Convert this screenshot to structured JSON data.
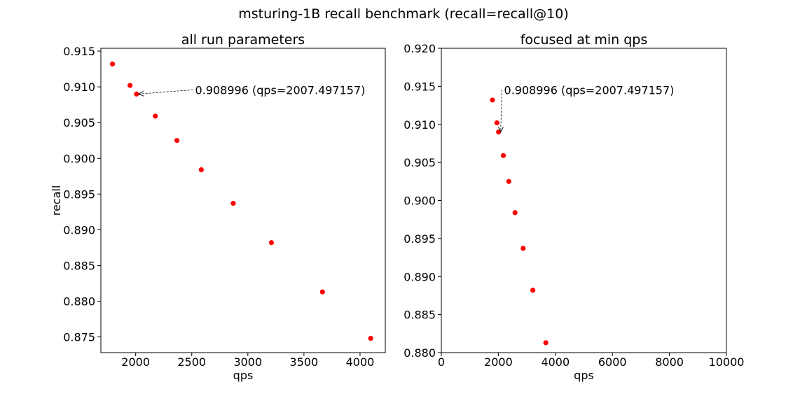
{
  "figure": {
    "suptitle": "msturing-1B recall benchmark (recall=recall@10)"
  },
  "chart_data": [
    {
      "type": "scatter",
      "title": "all run parameters",
      "xlabel": "qps",
      "ylabel": "recall",
      "xlim": [
        1690,
        4225
      ],
      "ylim": [
        0.8728,
        0.9154
      ],
      "xticks": [
        2000,
        2500,
        3000,
        3500,
        4000
      ],
      "yticks": [
        0.875,
        0.88,
        0.885,
        0.89,
        0.895,
        0.9,
        0.905,
        0.91,
        0.915
      ],
      "ytick_decimals": 3,
      "point_color": "#ff0000",
      "points": [
        {
          "x": 1793,
          "y": 0.9132
        },
        {
          "x": 1950,
          "y": 0.9102
        },
        {
          "x": 2007.497157,
          "y": 0.908996
        },
        {
          "x": 2175,
          "y": 0.9059
        },
        {
          "x": 2368,
          "y": 0.9025
        },
        {
          "x": 2585,
          "y": 0.8984
        },
        {
          "x": 2870,
          "y": 0.8937
        },
        {
          "x": 3210,
          "y": 0.8882
        },
        {
          "x": 3665,
          "y": 0.8813
        },
        {
          "x": 4095,
          "y": 0.8748
        }
      ],
      "annotation": {
        "text": "0.908996 (qps=2007.497157)",
        "x": 2007.497157,
        "y": 0.908996,
        "text_x": 2530,
        "text_y": 0.909
      }
    },
    {
      "type": "scatter",
      "title": "focused at min qps",
      "xlabel": "qps",
      "ylabel": "",
      "xlim": [
        0,
        10000
      ],
      "ylim": [
        0.88,
        0.92
      ],
      "xticks": [
        0,
        2000,
        4000,
        6000,
        8000,
        10000
      ],
      "yticks": [
        0.88,
        0.885,
        0.89,
        0.895,
        0.9,
        0.905,
        0.91,
        0.915,
        0.92
      ],
      "ytick_decimals": 3,
      "point_color": "#ff0000",
      "points": [
        {
          "x": 1793,
          "y": 0.9132
        },
        {
          "x": 1950,
          "y": 0.9102
        },
        {
          "x": 2007.497157,
          "y": 0.908996
        },
        {
          "x": 2175,
          "y": 0.9059
        },
        {
          "x": 2368,
          "y": 0.9025
        },
        {
          "x": 2585,
          "y": 0.8984
        },
        {
          "x": 2870,
          "y": 0.8937
        },
        {
          "x": 3210,
          "y": 0.8882
        },
        {
          "x": 3665,
          "y": 0.8813
        }
      ],
      "annotation": {
        "text": "0.908996 (qps=2007.497157)",
        "x": 2007.497157,
        "y": 0.908996,
        "text_x": 2200,
        "text_y": 0.914
      }
    }
  ]
}
